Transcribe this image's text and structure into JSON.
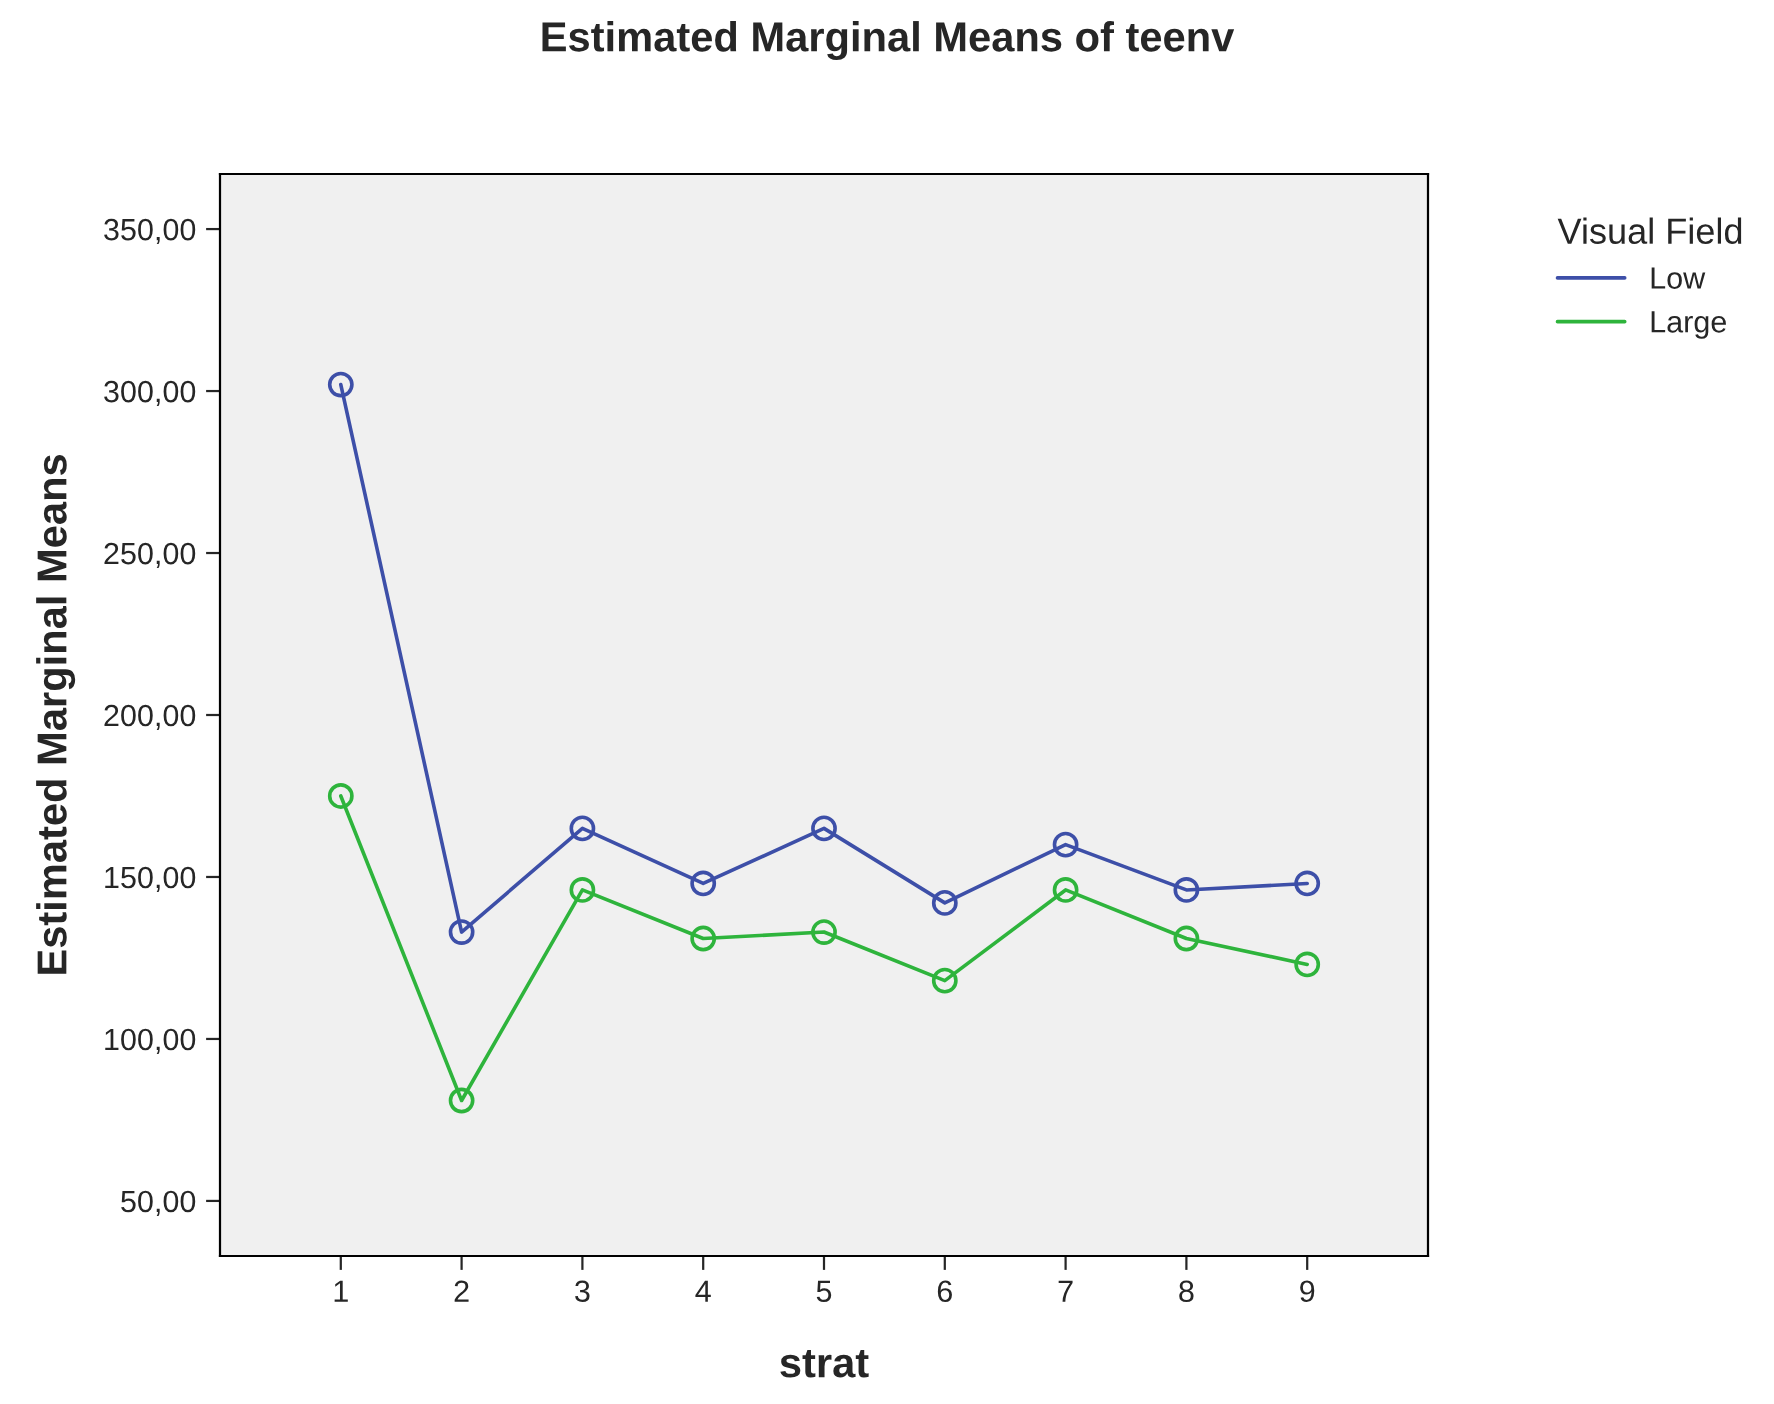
{
  "chart_data": {
    "type": "line",
    "title": "Estimated Marginal Means of teenv",
    "xlabel": "strat",
    "ylabel": "Estimated Marginal Means",
    "legend_title": "Visual Field",
    "legend": "top right",
    "marker": "circle",
    "line_style": "solid",
    "grid": false,
    "x": [
      1,
      2,
      3,
      4,
      5,
      6,
      7,
      8,
      9
    ],
    "series": [
      {
        "name": "Low",
        "color": "#3d4fa8",
        "values": [
          302,
          133,
          165,
          148,
          165,
          142,
          160,
          146,
          148
        ]
      },
      {
        "name": "Large",
        "color": "#2eb43c",
        "values": [
          175,
          81,
          146,
          131,
          133,
          118,
          146,
          131,
          123
        ]
      }
    ],
    "xlim": [
      0,
      10
    ],
    "xticks": [
      1,
      2,
      3,
      4,
      5,
      6,
      7,
      8,
      9
    ],
    "ylim": [
      33,
      367
    ],
    "yticks": [
      {
        "value": 50,
        "label": "50,00"
      },
      {
        "value": 100,
        "label": "100,00"
      },
      {
        "value": 150,
        "label": "150,00"
      },
      {
        "value": 200,
        "label": "200,00"
      },
      {
        "value": 250,
        "label": "250,00"
      },
      {
        "value": 300,
        "label": "300,00"
      },
      {
        "value": 350,
        "label": "350,00"
      }
    ]
  }
}
